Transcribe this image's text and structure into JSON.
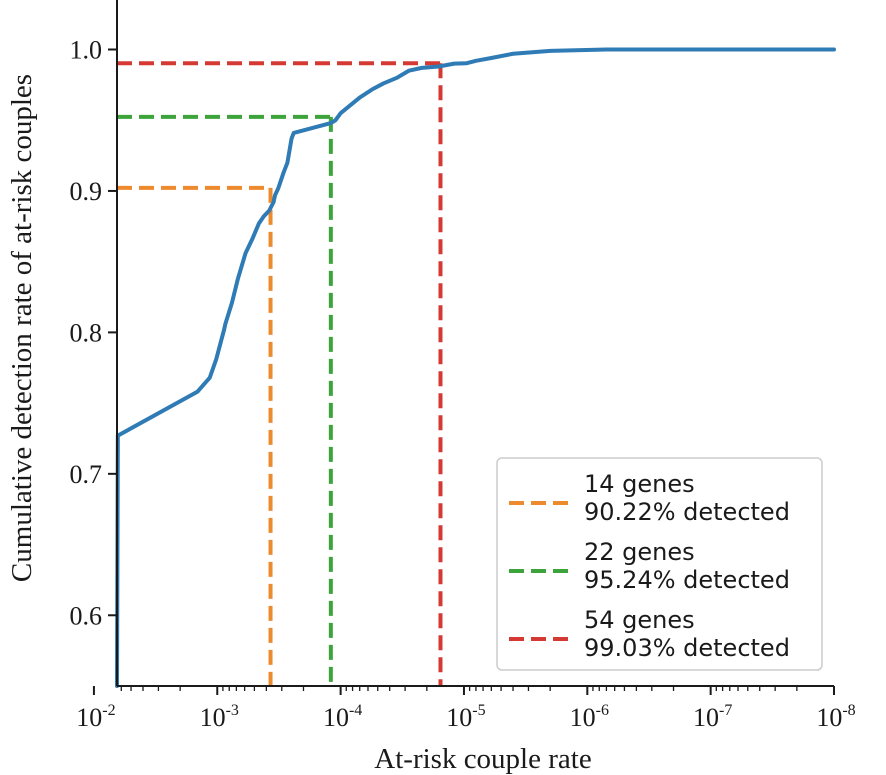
{
  "chart_data": {
    "type": "line",
    "xlabel": "At-risk couple rate",
    "ylabel": "Cumulative detection rate of at-risk couples",
    "x_scale": "log",
    "x_reversed": true,
    "xlim": [
      0.0065,
      1e-08
    ],
    "ylim": [
      0.55,
      1.035
    ],
    "x_ticks": [
      {
        "base": "10",
        "exp": "-2",
        "value": 0.01
      },
      {
        "base": "10",
        "exp": "-3",
        "value": 0.001
      },
      {
        "base": "10",
        "exp": "-4",
        "value": 0.0001
      },
      {
        "base": "10",
        "exp": "-5",
        "value": 1e-05
      },
      {
        "base": "10",
        "exp": "-6",
        "value": 1e-06
      },
      {
        "base": "10",
        "exp": "-7",
        "value": 1e-07
      },
      {
        "base": "10",
        "exp": "-8",
        "value": 1e-08
      }
    ],
    "y_ticks": [
      "0.6",
      "0.7",
      "0.8",
      "0.9",
      "1.0"
    ],
    "grid": false,
    "legend_position": "bottom-right",
    "curve": {
      "color": "#2f7bb5",
      "x": [
        0.0065,
        0.0064,
        0.00145,
        0.00115,
        0.00102,
        0.00088,
        0.00086,
        0.00076,
        0.00068,
        0.00059,
        0.00052,
        0.00046,
        0.00042,
        0.00038,
        0.00035,
        0.00034,
        0.00032,
        0.00029,
        0.00027,
        0.00025,
        0.00024,
        0.00012,
        0.00011,
        0.0001,
        8.5e-05,
        7e-05,
        5.5e-05,
        4.5e-05,
        3.5e-05,
        2.8e-05,
        2.2e-05,
        1.6e-05,
        1.2e-05,
        9.5e-06,
        8e-06,
        6e-06,
        4e-06,
        2e-06,
        7e-07,
        1e-08
      ],
      "y": [
        0.55,
        0.727,
        0.758,
        0.768,
        0.781,
        0.802,
        0.806,
        0.821,
        0.838,
        0.856,
        0.866,
        0.877,
        0.882,
        0.886,
        0.892,
        0.897,
        0.902,
        0.913,
        0.92,
        0.937,
        0.941,
        0.948,
        0.95,
        0.955,
        0.96,
        0.966,
        0.972,
        0.976,
        0.98,
        0.985,
        0.987,
        0.988,
        0.99,
        0.9903,
        0.992,
        0.994,
        0.997,
        0.999,
        1.0,
        1.0
      ]
    },
    "series": [
      {
        "name": "14 genes",
        "sub": "90.22% detected",
        "color": "#ee8a2e",
        "x": 0.00037,
        "y": 0.9022
      },
      {
        "name": "22 genes",
        "sub": "95.24% detected",
        "color": "#3da43c",
        "x": 0.00012,
        "y": 0.9524
      },
      {
        "name": "54 genes",
        "sub": "99.03% detected",
        "color": "#d43a33",
        "x": 1.55e-05,
        "y": 0.9903
      }
    ]
  }
}
